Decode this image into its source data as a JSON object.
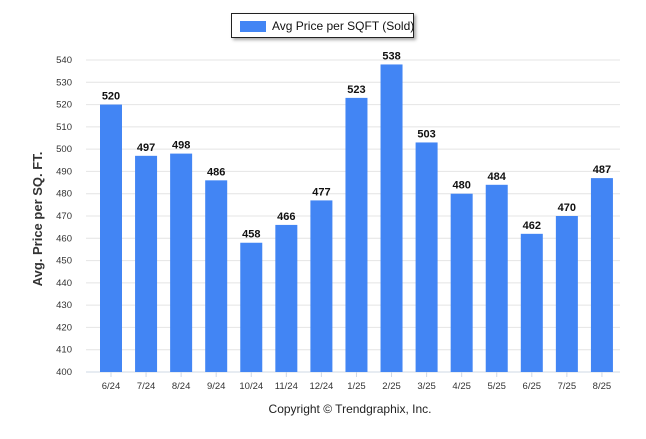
{
  "chart_data": {
    "type": "bar",
    "title": "",
    "xlabel": "",
    "ylabel": "Avg. Price per SQ. FT.",
    "ylim": [
      400,
      540
    ],
    "yticks": [
      400,
      410,
      420,
      430,
      440,
      450,
      460,
      470,
      480,
      490,
      500,
      510,
      520,
      530,
      540
    ],
    "grid": true,
    "legend_position": "top-center",
    "categories": [
      "6/24",
      "7/24",
      "8/24",
      "9/24",
      "10/24",
      "11/24",
      "12/24",
      "1/25",
      "2/25",
      "3/25",
      "4/25",
      "5/25",
      "6/25",
      "7/25",
      "8/25"
    ],
    "series": [
      {
        "name": "Avg Price per SQFT (Sold)",
        "color": "#4285f4",
        "values": [
          520,
          497,
          498,
          486,
          458,
          466,
          477,
          523,
          538,
          503,
          480,
          484,
          462,
          470,
          487
        ]
      }
    ]
  },
  "footer": {
    "copyright": "Copyright © Trendgraphix, Inc."
  }
}
